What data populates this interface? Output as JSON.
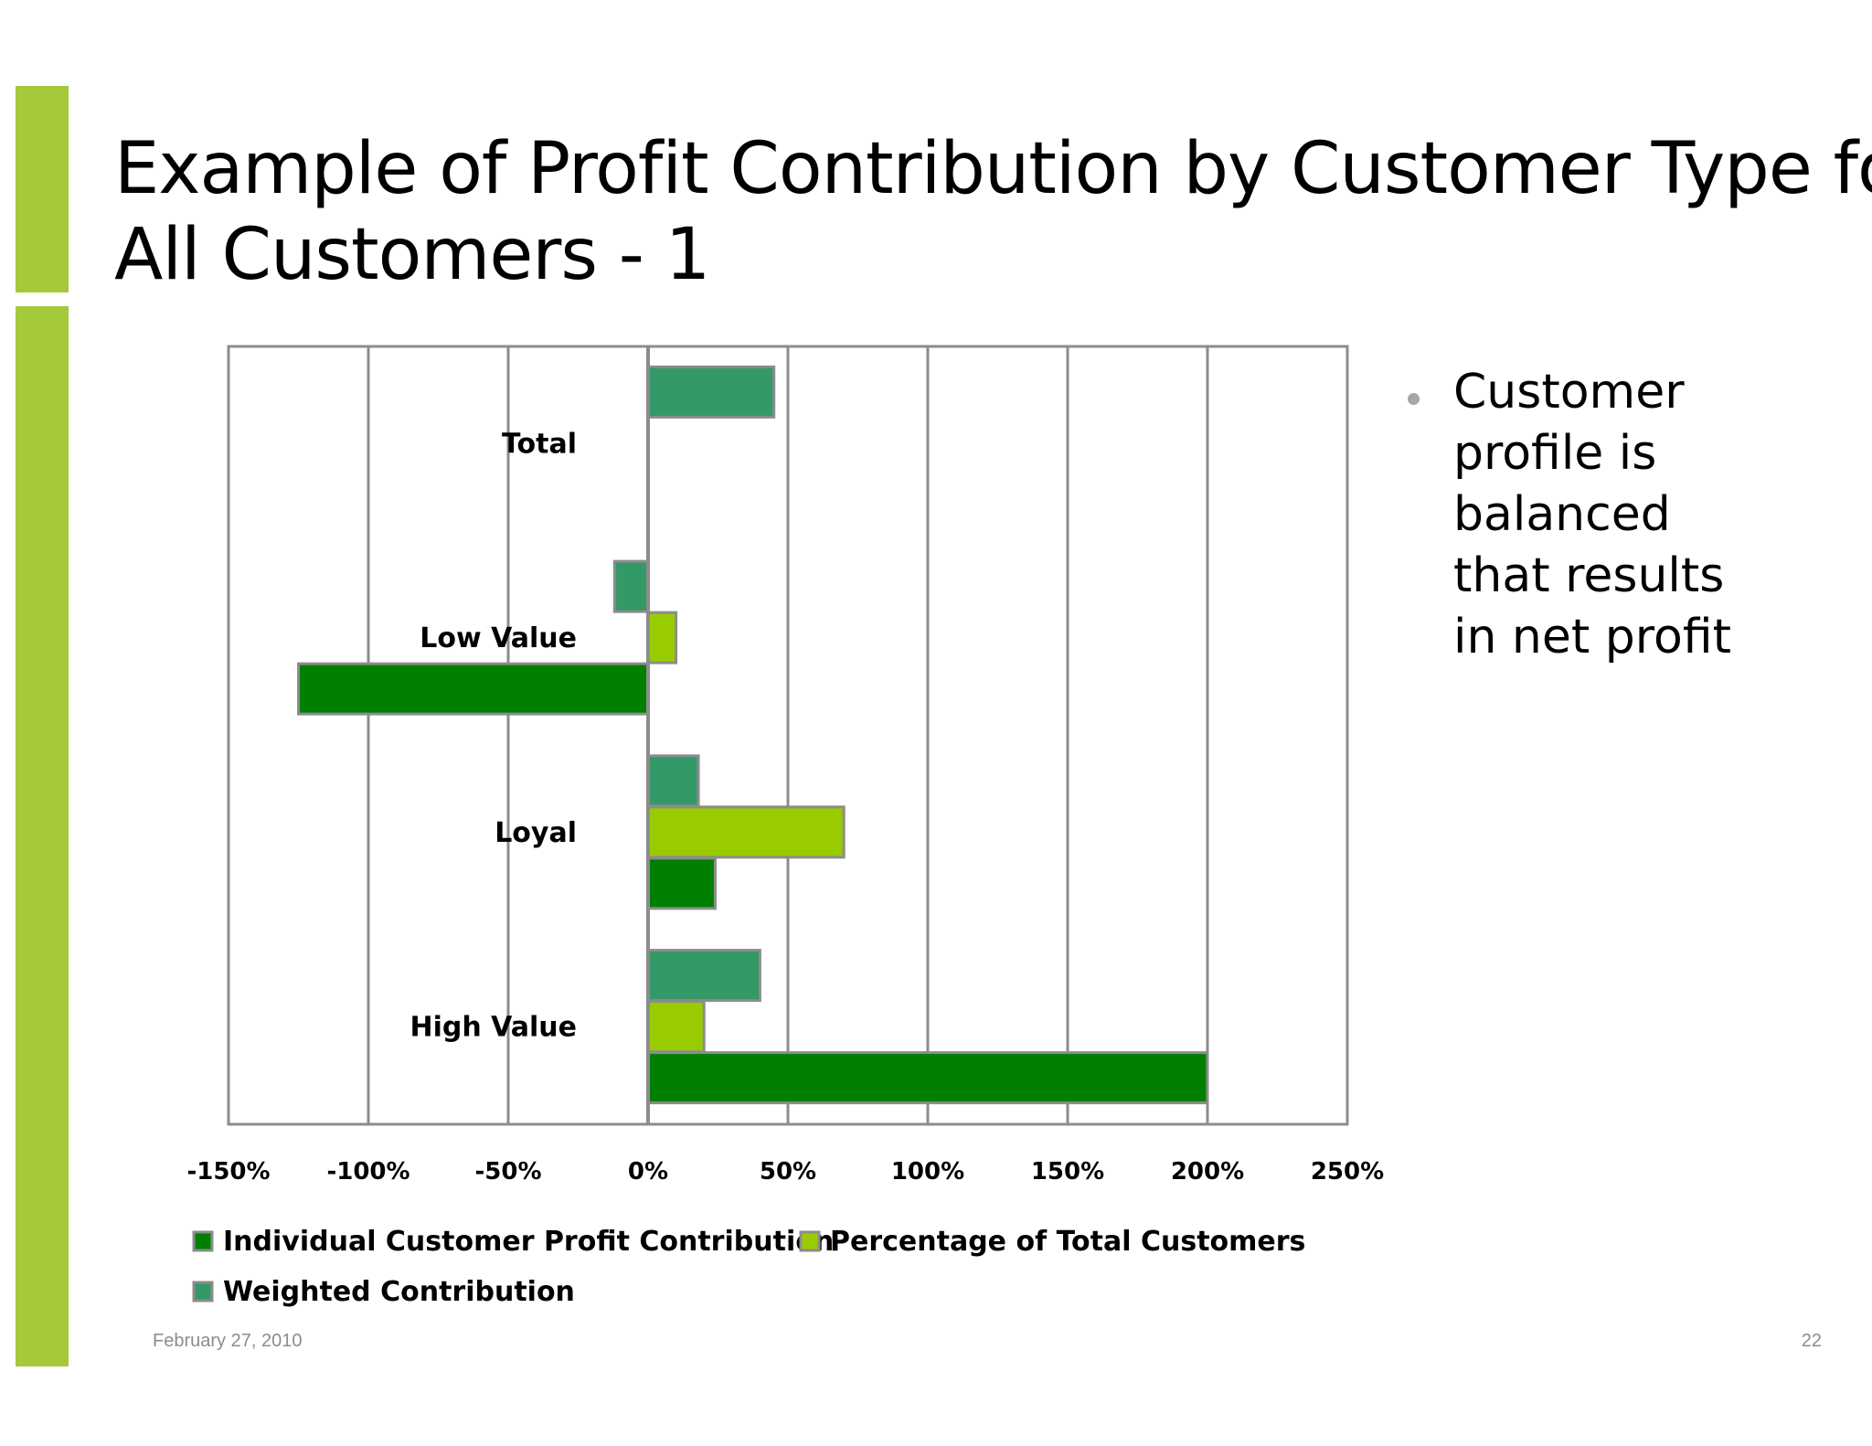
{
  "slide": {
    "title_lines": [
      "Example of Profit Contribution by Customer Type for",
      "All Customers - 1"
    ],
    "bullet_lines": [
      "Customer",
      "profile is",
      "balanced",
      "that results",
      "in net profit"
    ],
    "footer_date": "February 27, 2010",
    "page_number": "22",
    "accent_color": "#a4c93b"
  },
  "chart_data": {
    "type": "bar",
    "orientation": "horizontal",
    "categories": [
      "Total",
      "Low Value",
      "Loyal",
      "High Value"
    ],
    "series": [
      {
        "name": "Individual Customer Profit Contribution",
        "color": "#008000",
        "values": [
          null,
          -125,
          24,
          200
        ]
      },
      {
        "name": "Percentage of Total Customers",
        "color": "#99cc00",
        "values": [
          null,
          10,
          70,
          20
        ]
      },
      {
        "name": "Weighted Contribution",
        "color": "#339966",
        "values": [
          45,
          -12,
          18,
          40
        ]
      }
    ],
    "xlim": [
      -150,
      250
    ],
    "x_ticks": [
      "-150%",
      "-100%",
      "-50%",
      "0%",
      "50%",
      "100%",
      "150%",
      "200%",
      "250%"
    ],
    "x_tick_values": [
      -150,
      -100,
      -50,
      0,
      50,
      100,
      150,
      200,
      250
    ],
    "grid": "vertical",
    "legend_position": "bottom-left"
  }
}
